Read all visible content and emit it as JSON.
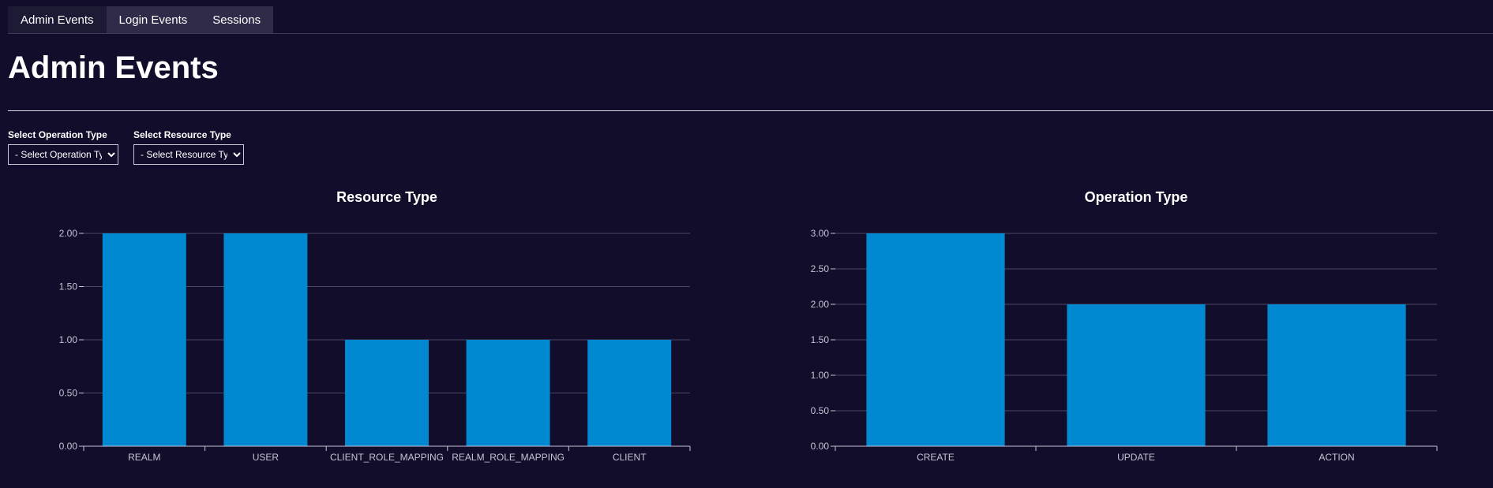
{
  "tabs": [
    {
      "label": "Admin Events",
      "active": true
    },
    {
      "label": "Login Events",
      "active": false
    },
    {
      "label": "Sessions",
      "active": false
    }
  ],
  "page_title": "Admin Events",
  "filters": {
    "operation": {
      "label": "Select Operation Type",
      "selected": "- Select Operation Type -"
    },
    "resource": {
      "label": "Select Resource Type",
      "selected": "- Select Resource Type -"
    }
  },
  "colors": {
    "bar": "#0088d1",
    "grid": "#4a4766",
    "axis": "#c7c4d6"
  },
  "chart_data": [
    {
      "type": "bar",
      "title": "Resource Type",
      "categories": [
        "REALM",
        "USER",
        "CLIENT_ROLE_MAPPING",
        "REALM_ROLE_MAPPING",
        "CLIENT"
      ],
      "values": [
        2,
        2,
        1,
        1,
        1
      ],
      "ylim": [
        0,
        2
      ],
      "yticks": [
        "0.00",
        "0.50",
        "1.00",
        "1.50",
        "2.00"
      ],
      "grid": true,
      "legend": "none"
    },
    {
      "type": "bar",
      "title": "Operation Type",
      "categories": [
        "CREATE",
        "UPDATE",
        "ACTION"
      ],
      "values": [
        3,
        2,
        2
      ],
      "ylim": [
        0,
        3
      ],
      "yticks": [
        "0.00",
        "0.50",
        "1.00",
        "1.50",
        "2.00",
        "2.50",
        "3.00"
      ],
      "grid": true,
      "legend": "none"
    }
  ]
}
